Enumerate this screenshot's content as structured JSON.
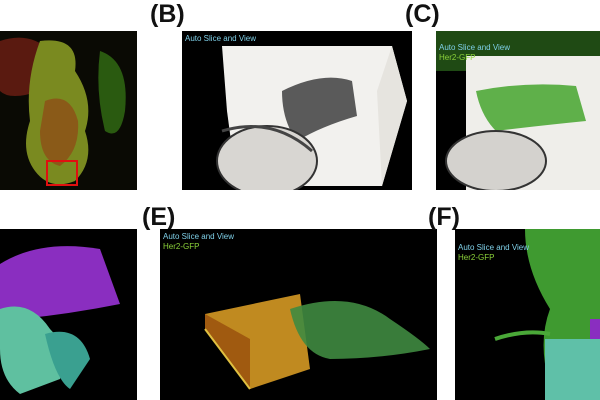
{
  "panels": [
    {
      "id": "A"
    },
    {
      "id": "B",
      "label": "(B)",
      "captions": [
        "Auto Slice and View"
      ]
    },
    {
      "id": "C",
      "label": "(C)",
      "captions": [
        "Auto Slice and View",
        "Her2-GFP"
      ]
    },
    {
      "id": "D"
    },
    {
      "id": "E",
      "label": "(E)",
      "captions": [
        "Auto Slice and View",
        "Her2-GFP"
      ]
    },
    {
      "id": "F",
      "label": "(F)",
      "captions": [
        "Auto Slice and View",
        "Her2-GFP"
      ]
    }
  ],
  "colors": {
    "caption_cyan": "#7fd0e8",
    "caption_green": "#8cd33a",
    "roi_box": "#e01010"
  }
}
